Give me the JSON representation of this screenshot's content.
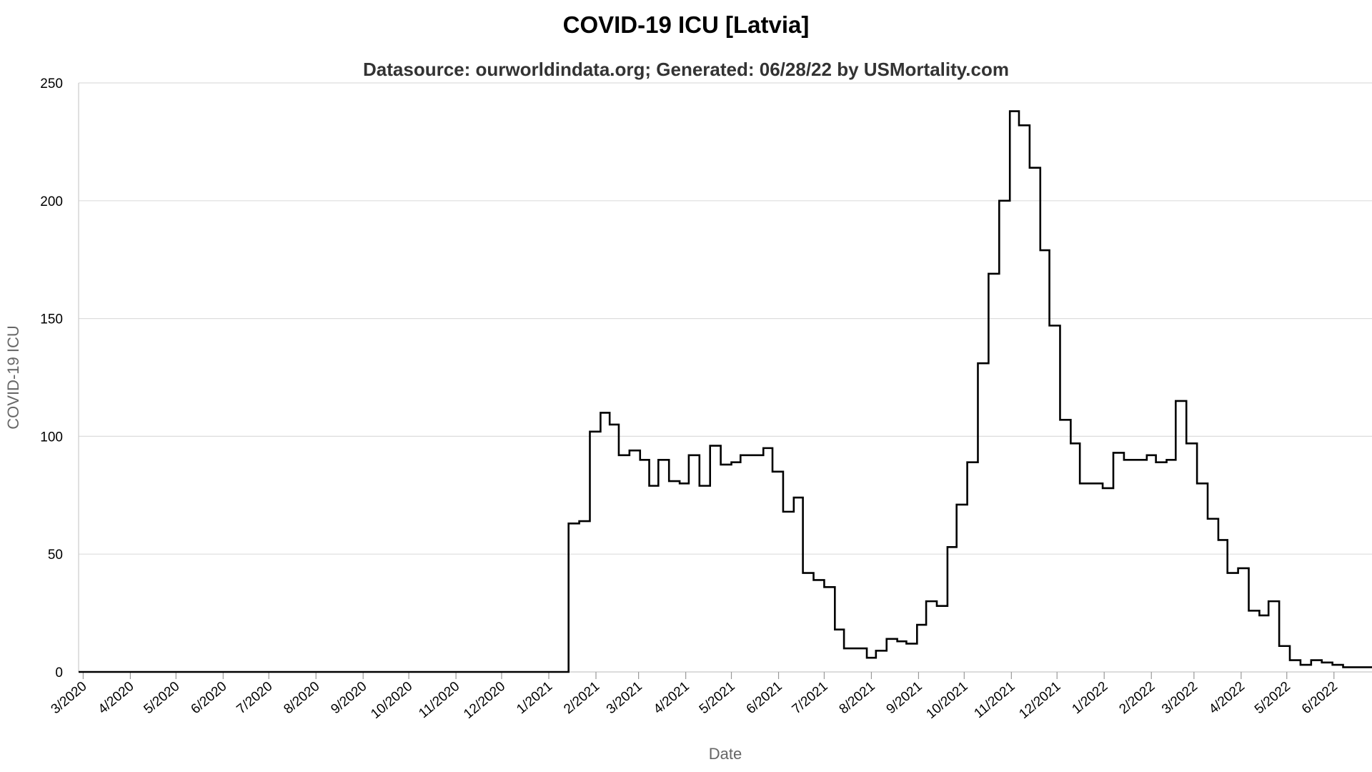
{
  "chart_data": {
    "type": "line",
    "title": "COVID-19 ICU [Latvia]",
    "subtitle": "Datasource: ourworldindata.org; Generated: 06/28/22 by USMortality.com",
    "xlabel": "Date",
    "ylabel": "COVID-19 ICU",
    "ylim": [
      0,
      250
    ],
    "yticks": [
      "0",
      "50",
      "100",
      "150",
      "200",
      "250"
    ],
    "xlim": [
      "2020-02-27",
      "2022-06-26"
    ],
    "xticks": [
      {
        "label": "3/2020",
        "date": "2020-03-01"
      },
      {
        "label": "4/2020",
        "date": "2020-04-01"
      },
      {
        "label": "5/2020",
        "date": "2020-05-01"
      },
      {
        "label": "6/2020",
        "date": "2020-06-01"
      },
      {
        "label": "7/2020",
        "date": "2020-07-01"
      },
      {
        "label": "8/2020",
        "date": "2020-08-01"
      },
      {
        "label": "9/2020",
        "date": "2020-09-01"
      },
      {
        "label": "10/2020",
        "date": "2020-10-01"
      },
      {
        "label": "11/2020",
        "date": "2020-11-01"
      },
      {
        "label": "12/2020",
        "date": "2020-12-01"
      },
      {
        "label": "1/2021",
        "date": "2021-01-01"
      },
      {
        "label": "2/2021",
        "date": "2021-02-01"
      },
      {
        "label": "3/2021",
        "date": "2021-03-01"
      },
      {
        "label": "4/2021",
        "date": "2021-04-01"
      },
      {
        "label": "5/2021",
        "date": "2021-05-01"
      },
      {
        "label": "6/2021",
        "date": "2021-06-01"
      },
      {
        "label": "7/2021",
        "date": "2021-07-01"
      },
      {
        "label": "8/2021",
        "date": "2021-08-01"
      },
      {
        "label": "9/2021",
        "date": "2021-09-01"
      },
      {
        "label": "10/2021",
        "date": "2021-10-01"
      },
      {
        "label": "11/2021",
        "date": "2021-11-01"
      },
      {
        "label": "12/2021",
        "date": "2021-12-01"
      },
      {
        "label": "1/2022",
        "date": "2022-01-01"
      },
      {
        "label": "2/2022",
        "date": "2022-02-01"
      },
      {
        "label": "3/2022",
        "date": "2022-03-01"
      },
      {
        "label": "4/2022",
        "date": "2022-04-01"
      },
      {
        "label": "5/2022",
        "date": "2022-05-01"
      },
      {
        "label": "6/2022",
        "date": "2022-06-01"
      }
    ],
    "grid": true,
    "line_color": "#000000",
    "series": [
      {
        "step": true,
        "points": [
          [
            "2020-02-27",
            0
          ],
          [
            "2021-01-13",
            0
          ],
          [
            "2021-01-14",
            63
          ],
          [
            "2021-01-21",
            64
          ],
          [
            "2021-01-28",
            102
          ],
          [
            "2021-02-04",
            110
          ],
          [
            "2021-02-10",
            105
          ],
          [
            "2021-02-16",
            92
          ],
          [
            "2021-02-23",
            94
          ],
          [
            "2021-03-02",
            90
          ],
          [
            "2021-03-08",
            79
          ],
          [
            "2021-03-14",
            90
          ],
          [
            "2021-03-21",
            81
          ],
          [
            "2021-03-28",
            80
          ],
          [
            "2021-04-03",
            92
          ],
          [
            "2021-04-10",
            79
          ],
          [
            "2021-04-17",
            96
          ],
          [
            "2021-04-24",
            88
          ],
          [
            "2021-05-01",
            89
          ],
          [
            "2021-05-07",
            92
          ],
          [
            "2021-05-22",
            95
          ],
          [
            "2021-05-28",
            85
          ],
          [
            "2021-06-04",
            68
          ],
          [
            "2021-06-11",
            74
          ],
          [
            "2021-06-17",
            42
          ],
          [
            "2021-06-24",
            39
          ],
          [
            "2021-07-01",
            36
          ],
          [
            "2021-07-08",
            18
          ],
          [
            "2021-07-14",
            10
          ],
          [
            "2021-07-29",
            6
          ],
          [
            "2021-08-04",
            9
          ],
          [
            "2021-08-11",
            14
          ],
          [
            "2021-08-18",
            13
          ],
          [
            "2021-08-24",
            12
          ],
          [
            "2021-08-31",
            20
          ],
          [
            "2021-09-06",
            30
          ],
          [
            "2021-09-13",
            28
          ],
          [
            "2021-09-20",
            53
          ],
          [
            "2021-09-26",
            71
          ],
          [
            "2021-10-03",
            89
          ],
          [
            "2021-10-10",
            131
          ],
          [
            "2021-10-17",
            169
          ],
          [
            "2021-10-24",
            200
          ],
          [
            "2021-10-31",
            238
          ],
          [
            "2021-11-06",
            232
          ],
          [
            "2021-11-13",
            214
          ],
          [
            "2021-11-20",
            179
          ],
          [
            "2021-11-26",
            147
          ],
          [
            "2021-12-03",
            107
          ],
          [
            "2021-12-10",
            97
          ],
          [
            "2021-12-16",
            80
          ],
          [
            "2021-12-31",
            78
          ],
          [
            "2022-01-07",
            93
          ],
          [
            "2022-01-14",
            90
          ],
          [
            "2022-01-29",
            92
          ],
          [
            "2022-02-04",
            89
          ],
          [
            "2022-02-11",
            90
          ],
          [
            "2022-02-17",
            115
          ],
          [
            "2022-02-24",
            97
          ],
          [
            "2022-03-03",
            80
          ],
          [
            "2022-03-10",
            65
          ],
          [
            "2022-03-17",
            56
          ],
          [
            "2022-03-23",
            42
          ],
          [
            "2022-03-30",
            44
          ],
          [
            "2022-04-06",
            26
          ],
          [
            "2022-04-13",
            24
          ],
          [
            "2022-04-19",
            30
          ],
          [
            "2022-04-26",
            11
          ],
          [
            "2022-05-03",
            5
          ],
          [
            "2022-05-10",
            3
          ],
          [
            "2022-05-17",
            5
          ],
          [
            "2022-05-24",
            4
          ],
          [
            "2022-05-31",
            3
          ],
          [
            "2022-06-07",
            2
          ],
          [
            "2022-06-26",
            2
          ]
        ]
      }
    ]
  }
}
